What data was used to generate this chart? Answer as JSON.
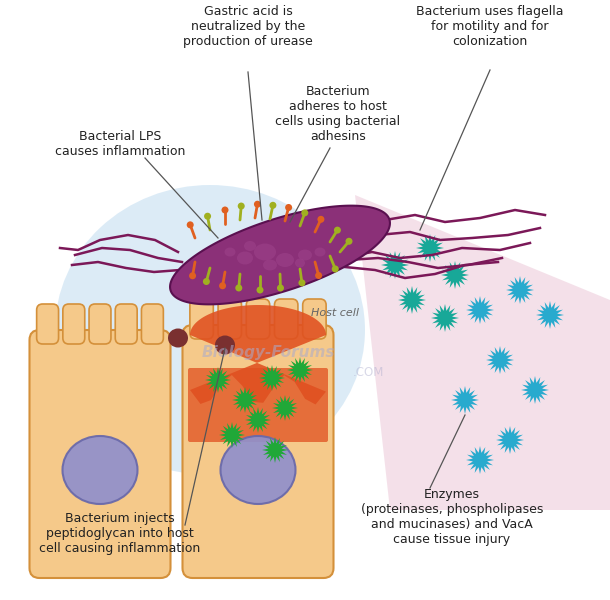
{
  "bg": "#ffffff",
  "labels": {
    "gastric_acid": "Gastric acid is\nneutralized by the\nproduction of urease",
    "flagella_label": "Bacterium uses flagella\nfor motility and for\ncolonization",
    "lps": "Bacterial LPS\ncauses inflammation",
    "adhesins": "Bacterium\nadheres to host\ncells using bacterial\nadhesins",
    "peptidoglycan": "Bacterium injects\npeptidoglycan into host\ncell causing inflammation",
    "enzymes": "Enzymes\n(proteinases, phospholipases\nand mucinases) and VacA\ncause tissue injury",
    "host_cell": "Host cell"
  },
  "colors": {
    "cell_body": "#F5C98A",
    "cell_border": "#D4903A",
    "cell_damaged": "#E05020",
    "nucleus_fill": "#9090CC",
    "nucleus_edge": "#6868AA",
    "bact_body": "#8B3078",
    "bact_edge": "#5A1050",
    "bact_spot": "#9B4088",
    "flagella_color": "#7B1858",
    "lps_green": "#A0B020",
    "lps_orange": "#E06020",
    "blue_bg": "#C0DCF0",
    "pink_bg": "#ECC8D8",
    "green_particle": "#20A838",
    "teal_particle": "#18A898",
    "cyan_particle": "#28AACE",
    "brown_dot": "#7A3030",
    "line_color": "#555555",
    "text_color": "#222222"
  }
}
